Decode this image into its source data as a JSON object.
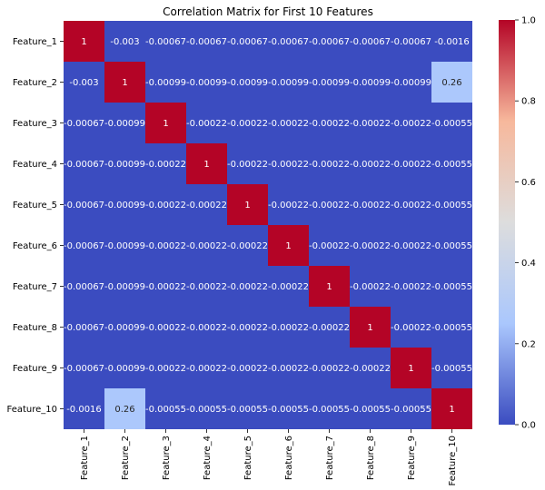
{
  "chart_data": {
    "type": "heatmap",
    "title": "Correlation Matrix for First 10 Features",
    "rows": [
      "Feature_1",
      "Feature_2",
      "Feature_3",
      "Feature_4",
      "Feature_5",
      "Feature_6",
      "Feature_7",
      "Feature_8",
      "Feature_9",
      "Feature_10"
    ],
    "columns": [
      "Feature_1",
      "Feature_2",
      "Feature_3",
      "Feature_4",
      "Feature_5",
      "Feature_6",
      "Feature_7",
      "Feature_8",
      "Feature_9",
      "Feature_10"
    ],
    "values": [
      [
        1,
        -0.003,
        -0.00067,
        -0.00067,
        -0.00067,
        -0.00067,
        -0.00067,
        -0.00067,
        -0.00067,
        -0.0016
      ],
      [
        -0.003,
        1,
        -0.00099,
        -0.00099,
        -0.00099,
        -0.00099,
        -0.00099,
        -0.00099,
        -0.00099,
        0.26
      ],
      [
        -0.00067,
        -0.00099,
        1,
        -0.00022,
        -0.00022,
        -0.00022,
        -0.00022,
        -0.00022,
        -0.00022,
        -0.00055
      ],
      [
        -0.00067,
        -0.00099,
        -0.00022,
        1,
        -0.00022,
        -0.00022,
        -0.00022,
        -0.00022,
        -0.00022,
        -0.00055
      ],
      [
        -0.00067,
        -0.00099,
        -0.00022,
        -0.00022,
        1,
        -0.00022,
        -0.00022,
        -0.00022,
        -0.00022,
        -0.00055
      ],
      [
        -0.00067,
        -0.00099,
        -0.00022,
        -0.00022,
        -0.00022,
        1,
        -0.00022,
        -0.00022,
        -0.00022,
        -0.00055
      ],
      [
        -0.00067,
        -0.00099,
        -0.00022,
        -0.00022,
        -0.00022,
        -0.00022,
        1,
        -0.00022,
        -0.00022,
        -0.00055
      ],
      [
        -0.00067,
        -0.00099,
        -0.00022,
        -0.00022,
        -0.00022,
        -0.00022,
        -0.00022,
        1,
        -0.00022,
        -0.00055
      ],
      [
        -0.00067,
        -0.00099,
        -0.00022,
        -0.00022,
        -0.00022,
        -0.00022,
        -0.00022,
        -0.00022,
        1,
        -0.00055
      ],
      [
        -0.0016,
        0.26,
        -0.00055,
        -0.00055,
        -0.00055,
        -0.00055,
        -0.00055,
        -0.00055,
        -0.00055,
        1
      ]
    ],
    "annotations": [
      [
        "1",
        "-0.003",
        "-0.00067",
        "-0.00067",
        "-0.00067",
        "-0.00067",
        "-0.00067",
        "-0.00067",
        "-0.00067",
        "-0.0016"
      ],
      [
        "-0.003",
        "1",
        "-0.00099",
        "-0.00099",
        "-0.00099",
        "-0.00099",
        "-0.00099",
        "-0.00099",
        "-0.00099",
        "0.26"
      ],
      [
        "-0.00067",
        "-0.00099",
        "1",
        "-0.00022",
        "-0.00022",
        "-0.00022",
        "-0.00022",
        "-0.00022",
        "-0.00022",
        "-0.00055"
      ],
      [
        "-0.00067",
        "-0.00099",
        "-0.00022",
        "1",
        "-0.00022",
        "-0.00022",
        "-0.00022",
        "-0.00022",
        "-0.00022",
        "-0.00055"
      ],
      [
        "-0.00067",
        "-0.00099",
        "-0.00022",
        "-0.00022",
        "1",
        "-0.00022",
        "-0.00022",
        "-0.00022",
        "-0.00022",
        "-0.00055"
      ],
      [
        "-0.00067",
        "-0.00099",
        "-0.00022",
        "-0.00022",
        "-0.00022",
        "1",
        "-0.00022",
        "-0.00022",
        "-0.00022",
        "-0.00055"
      ],
      [
        "-0.00067",
        "-0.00099",
        "-0.00022",
        "-0.00022",
        "-0.00022",
        "-0.00022",
        "1",
        "-0.00022",
        "-0.00022",
        "-0.00055"
      ],
      [
        "-0.00067",
        "-0.00099",
        "-0.00022",
        "-0.00022",
        "-0.00022",
        "-0.00022",
        "-0.00022",
        "1",
        "-0.00022",
        "-0.00055"
      ],
      [
        "-0.00067",
        "-0.00099",
        "-0.00022",
        "-0.00022",
        "-0.00022",
        "-0.00022",
        "-0.00022",
        "-0.00022",
        "1",
        "-0.00055"
      ],
      [
        "-0.0016",
        "0.26",
        "-0.00055",
        "-0.00055",
        "-0.00055",
        "-0.00055",
        "-0.00055",
        "-0.00055",
        "-0.00055",
        "1"
      ]
    ],
    "colormap": "coolwarm",
    "colormap_stops": [
      "#3b4cc0",
      "#aac7fd",
      "#dddddd",
      "#f7b89c",
      "#b40426"
    ],
    "colorbar": {
      "range": [
        0.0,
        1.0
      ],
      "ticks": [
        0.0,
        0.2,
        0.4,
        0.6,
        0.8,
        1.0
      ],
      "tick_labels": [
        "0.0",
        "0.2",
        "0.4",
        "0.6",
        "0.8",
        "1.0"
      ]
    }
  }
}
